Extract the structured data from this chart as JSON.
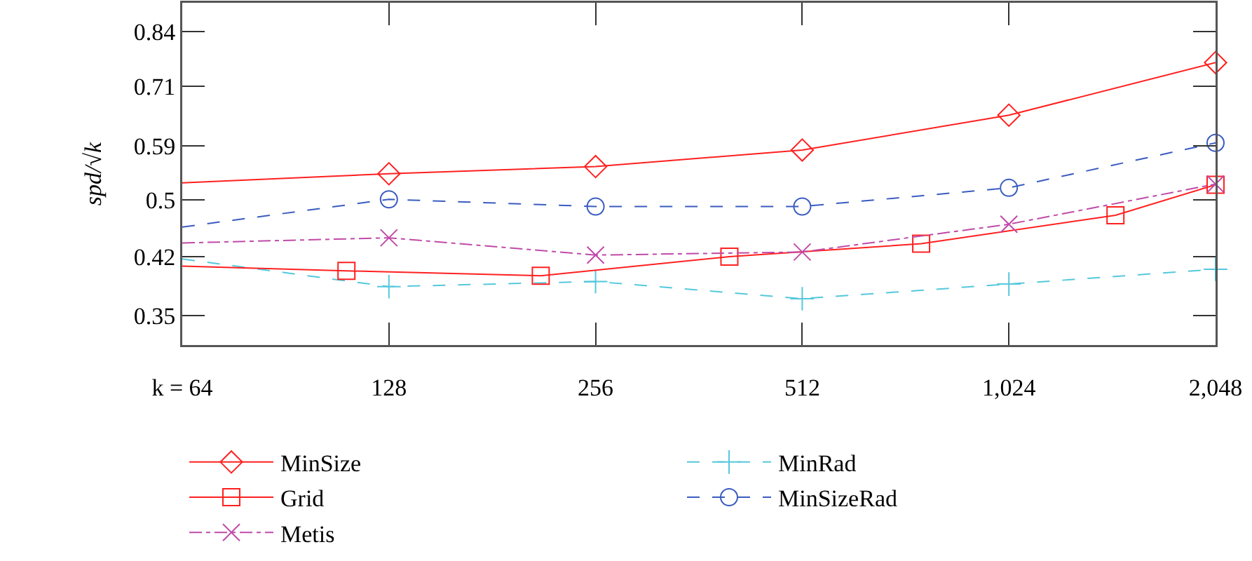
{
  "chart_data": {
    "type": "line",
    "ylabel": "spd/√k",
    "log": "xy",
    "grid": false,
    "legend": "bottom",
    "x": [
      64,
      128,
      256,
      512,
      1024,
      2048
    ],
    "xlim": [
      64,
      2048
    ],
    "xticks": [
      {
        "value": 64,
        "label": "k = 64"
      },
      128,
      256,
      512,
      {
        "value": 1024,
        "label": "1,024"
      },
      {
        "value": 2048,
        "label": "2,048"
      }
    ],
    "ylim": [
      0.32,
      0.917
    ],
    "yticks": [
      0.35,
      0.42,
      0.5,
      0.59,
      0.71,
      0.84
    ],
    "series": [
      {
        "name": "MinSize",
        "color": "#ff2020",
        "marker": "diamond",
        "line_style": "solid",
        "values": [
          0.527,
          0.542,
          0.554,
          0.583,
          0.649,
          0.763
        ]
      },
      {
        "name": "MinRad",
        "color": "#55c8dc",
        "marker": "cross",
        "line_style": "dashed",
        "values": [
          0.417,
          0.383,
          0.389,
          0.369,
          0.386,
          0.404
        ]
      },
      {
        "name": "Grid",
        "color": "#ff2020",
        "marker": "square",
        "line_style": "solid",
        "x": [
          64,
          111,
          213,
          401,
          763,
          1464,
          2048
        ],
        "values": [
          0.408,
          0.402,
          0.396,
          0.42,
          0.437,
          0.477,
          0.524
        ]
      },
      {
        "name": "MinSizeRad",
        "color": "#3a5cc0",
        "marker": "circle",
        "line_style": "dashed",
        "values": [
          0.46,
          0.501,
          0.49,
          0.49,
          0.519,
          0.596
        ]
      },
      {
        "name": "Metis",
        "color": "#c04aa8",
        "marker": "x",
        "line_style": "dashdot",
        "values": [
          0.438,
          0.445,
          0.422,
          0.426,
          0.464,
          0.525
        ]
      }
    ]
  }
}
